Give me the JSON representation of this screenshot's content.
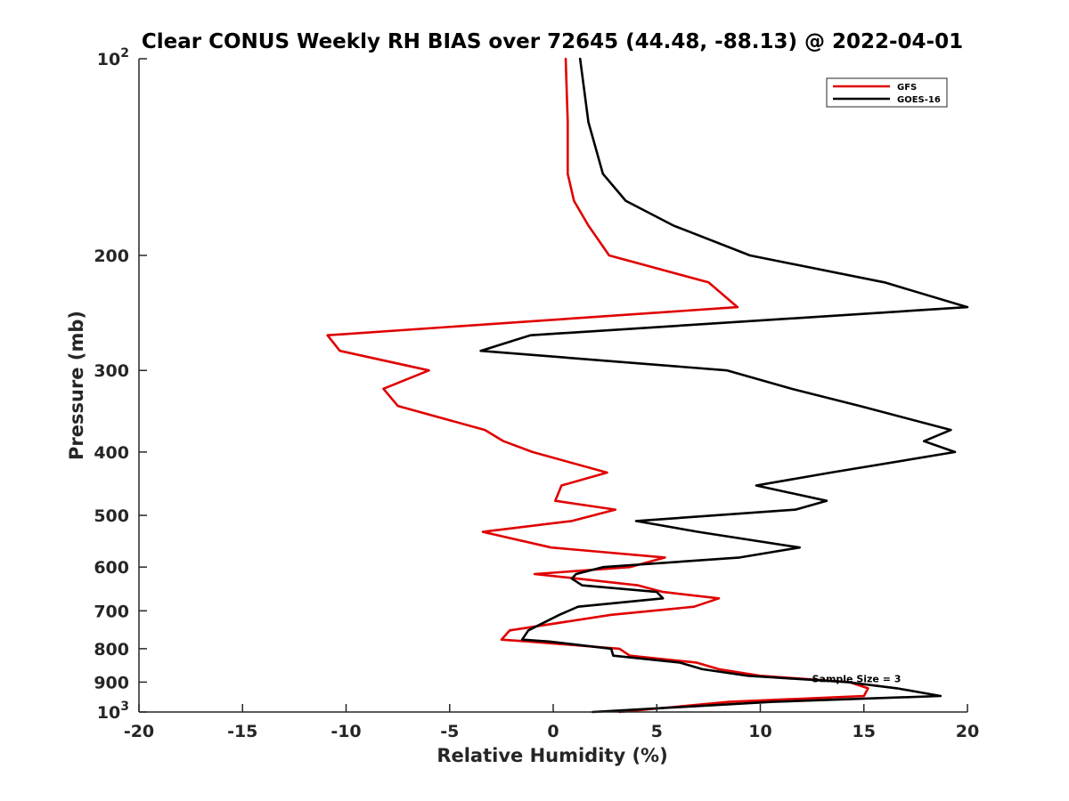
{
  "chart_data": {
    "type": "line",
    "title": "Clear CONUS Weekly RH BIAS over 72645 (44.48, -88.13) @ 2022-04-01",
    "xlabel": "Relative Humidity (%)",
    "ylabel": "Pressure (mb)",
    "xlim": [
      -20,
      20
    ],
    "ylim": [
      100,
      1000
    ],
    "yscale": "log",
    "y_direction": "reverse",
    "grid": false,
    "legend_position": "top-right",
    "x_ticks": [
      -20,
      -15,
      -10,
      -5,
      0,
      5,
      10,
      15,
      20
    ],
    "x_tick_labels": [
      "-20",
      "-15",
      "-10",
      "-5",
      "0",
      "5",
      "10",
      "15",
      "20"
    ],
    "y_ticks": [
      100,
      200,
      300,
      400,
      500,
      600,
      700,
      800,
      900,
      1000
    ],
    "y_tick_labels": [
      {
        "base": "10",
        "sup": "2"
      },
      {
        "base": "200",
        "sup": ""
      },
      {
        "base": "300",
        "sup": ""
      },
      {
        "base": "400",
        "sup": ""
      },
      {
        "base": "500",
        "sup": ""
      },
      {
        "base": "600",
        "sup": ""
      },
      {
        "base": "700",
        "sup": ""
      },
      {
        "base": "800",
        "sup": ""
      },
      {
        "base": "900",
        "sup": ""
      },
      {
        "base": "10",
        "sup": "3"
      }
    ],
    "series": [
      {
        "name": "GFS",
        "color": "#e00000",
        "points": [
          [
            0.6,
            100
          ],
          [
            0.7,
            125
          ],
          [
            0.7,
            150
          ],
          [
            1.0,
            165
          ],
          [
            1.7,
            180
          ],
          [
            2.7,
            200
          ],
          [
            7.5,
            220
          ],
          [
            8.9,
            240
          ],
          [
            -10.9,
            265
          ],
          [
            -10.3,
            280
          ],
          [
            -6.0,
            300
          ],
          [
            -8.2,
            320
          ],
          [
            -7.5,
            340
          ],
          [
            -3.3,
            370
          ],
          [
            -2.4,
            385
          ],
          [
            -1.0,
            400
          ],
          [
            2.6,
            430
          ],
          [
            0.4,
            450
          ],
          [
            0.1,
            475
          ],
          [
            3.0,
            490
          ],
          [
            0.9,
            510
          ],
          [
            -3.4,
            530
          ],
          [
            -0.1,
            560
          ],
          [
            5.4,
            580
          ],
          [
            3.7,
            600
          ],
          [
            -0.9,
            615
          ],
          [
            1.2,
            625
          ],
          [
            4.1,
            640
          ],
          [
            5.3,
            655
          ],
          [
            8.0,
            670
          ],
          [
            6.8,
            690
          ],
          [
            2.8,
            710
          ],
          [
            -2.1,
            750
          ],
          [
            -2.5,
            775
          ],
          [
            -1.2,
            780
          ],
          [
            3.2,
            800
          ],
          [
            3.7,
            820
          ],
          [
            6.9,
            840
          ],
          [
            8.0,
            860
          ],
          [
            10.0,
            880
          ],
          [
            14.3,
            900
          ],
          [
            15.2,
            920
          ],
          [
            15.0,
            945
          ],
          [
            8.5,
            965
          ],
          [
            3.2,
            1000
          ]
        ]
      },
      {
        "name": "GOES-16",
        "color": "#000000",
        "points": [
          [
            1.3,
            100
          ],
          [
            1.7,
            125
          ],
          [
            2.4,
            150
          ],
          [
            3.5,
            165
          ],
          [
            5.8,
            180
          ],
          [
            9.5,
            200
          ],
          [
            16.0,
            220
          ],
          [
            20.0,
            240
          ],
          [
            -1.1,
            265
          ],
          [
            -3.5,
            280
          ],
          [
            8.4,
            300
          ],
          [
            11.5,
            320
          ],
          [
            14.8,
            340
          ],
          [
            19.2,
            370
          ],
          [
            17.9,
            385
          ],
          [
            19.4,
            400
          ],
          [
            13.4,
            430
          ],
          [
            9.8,
            450
          ],
          [
            13.2,
            475
          ],
          [
            11.7,
            490
          ],
          [
            4.0,
            510
          ],
          [
            7.0,
            530
          ],
          [
            11.9,
            560
          ],
          [
            9.0,
            580
          ],
          [
            2.4,
            600
          ],
          [
            1.1,
            615
          ],
          [
            0.9,
            625
          ],
          [
            1.4,
            640
          ],
          [
            5.0,
            655
          ],
          [
            5.3,
            670
          ],
          [
            1.2,
            690
          ],
          [
            0.3,
            710
          ],
          [
            -1.2,
            750
          ],
          [
            -1.5,
            775
          ],
          [
            -0.2,
            780
          ],
          [
            2.8,
            800
          ],
          [
            2.9,
            820
          ],
          [
            6.1,
            840
          ],
          [
            7.2,
            860
          ],
          [
            9.4,
            880
          ],
          [
            14.2,
            900
          ],
          [
            16.6,
            920
          ],
          [
            18.7,
            945
          ],
          [
            10.6,
            965
          ],
          [
            1.9,
            1000
          ]
        ]
      }
    ],
    "annotation": {
      "text": "Sample Size = 3",
      "x": 12.5,
      "y": 900
    }
  }
}
